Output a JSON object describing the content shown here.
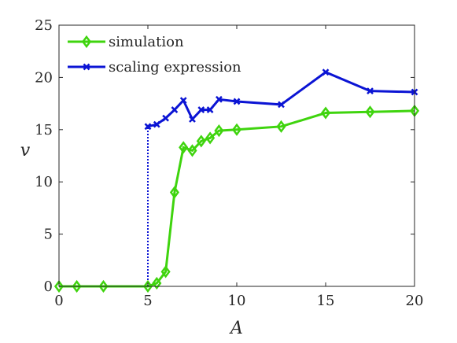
{
  "chart_data": {
    "type": "line",
    "xlabel": "A",
    "ylabel": "v",
    "xlim": [
      0,
      20
    ],
    "ylim": [
      0,
      25
    ],
    "xticks": [
      "0",
      "5",
      "10",
      "15",
      "20"
    ],
    "yticks": [
      "0",
      "5",
      "10",
      "15",
      "20",
      "25"
    ],
    "grid": false,
    "legend_position": "top-left",
    "series": [
      {
        "name": "simulation",
        "color": "#3fd40e",
        "marker": "diamond",
        "x": [
          0,
          1,
          2.5,
          5,
          5.5,
          6,
          6.5,
          7,
          7.5,
          8,
          8.5,
          9,
          10,
          12.5,
          15,
          17.5,
          20
        ],
        "y": [
          0,
          0,
          0,
          0,
          0.3,
          1.4,
          9.0,
          13.3,
          13.0,
          13.9,
          14.2,
          14.9,
          15.0,
          15.3,
          16.6,
          16.7,
          16.8
        ]
      },
      {
        "name": "scaling expression",
        "color": "#0b14d4",
        "marker": "x",
        "x": [
          0,
          1,
          2.5,
          5,
          5,
          5.5,
          6,
          6.5,
          7,
          7.5,
          8,
          8.5,
          9,
          10,
          12.5,
          15,
          17.5,
          20
        ],
        "y": [
          0,
          0,
          0,
          0,
          15.3,
          15.5,
          16.1,
          16.9,
          17.8,
          16.0,
          16.9,
          16.9,
          17.9,
          17.7,
          17.4,
          20.5,
          18.7,
          18.6
        ],
        "dotted_segment_x": 5
      }
    ]
  }
}
